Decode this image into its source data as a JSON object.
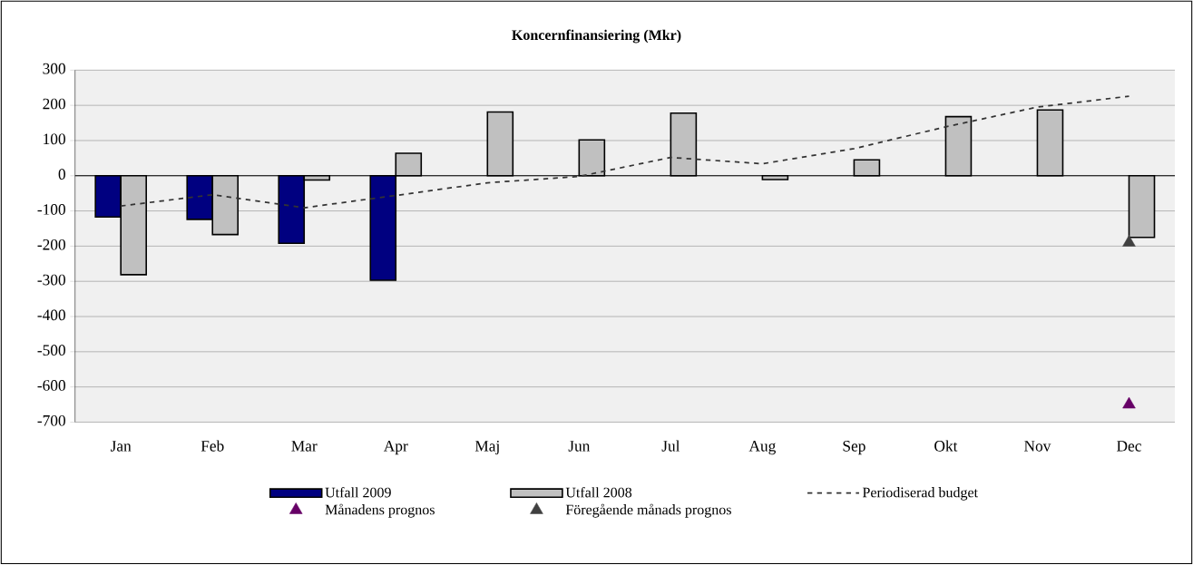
{
  "chart_data": {
    "type": "bar",
    "title": "Koncernfinansiering (Mkr)",
    "categories": [
      "Jan",
      "Feb",
      "Mar",
      "Apr",
      "Maj",
      "Jun",
      "Jul",
      "Aug",
      "Sep",
      "Okt",
      "Nov",
      "Dec"
    ],
    "series": [
      {
        "name": "Utfall 2009",
        "color": "#000080",
        "values": [
          -117,
          -124,
          -192,
          -297,
          null,
          null,
          null,
          null,
          null,
          null,
          null,
          null
        ]
      },
      {
        "name": "Utfall 2008",
        "color": "#c0c0c0",
        "values": [
          -281,
          -167,
          -12,
          64,
          181,
          102,
          178,
          -11,
          45,
          168,
          187,
          -175
        ]
      },
      {
        "name": "Periodiserad budget",
        "type": "line",
        "color": "#333333",
        "line_style": "dashed",
        "marker": "none",
        "values": [
          -86,
          -54,
          -91,
          -56,
          -20,
          -2,
          52,
          34,
          77,
          139,
          195,
          226
        ]
      },
      {
        "name": "Månadens prognos",
        "type": "scatter",
        "color": "#660066",
        "marker": "triangle",
        "values": [
          null,
          null,
          null,
          null,
          null,
          null,
          null,
          null,
          null,
          null,
          null,
          -650
        ]
      },
      {
        "name": "Föregående månads prognos",
        "type": "scatter",
        "color": "#404040",
        "marker": "triangle",
        "values": [
          null,
          null,
          null,
          null,
          null,
          null,
          null,
          null,
          null,
          null,
          null,
          -190
        ]
      }
    ],
    "ylim": [
      -700,
      300
    ],
    "yticks": [
      -700,
      -600,
      -500,
      -400,
      -300,
      -200,
      -100,
      0,
      100,
      200,
      300
    ],
    "grid": "y",
    "legend": "bottom"
  }
}
